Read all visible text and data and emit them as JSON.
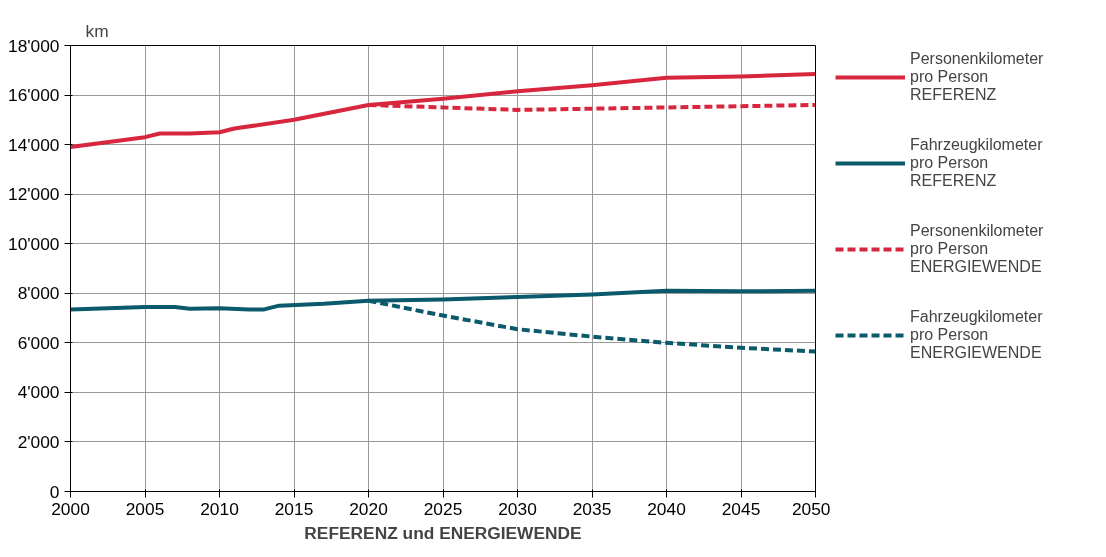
{
  "chart_data": {
    "type": "line",
    "xlabel": "REFERENZ und ENERGIEWENDE",
    "ylabel": "km",
    "xlim": [
      2000,
      2050
    ],
    "xticks": [
      2000,
      2005,
      2010,
      2015,
      2020,
      2025,
      2030,
      2035,
      2040,
      2045,
      2050
    ],
    "ylim": [
      0,
      18000
    ],
    "yticks": [
      0,
      {
        "value": 2000,
        "label": "2'000"
      },
      {
        "value": 4000,
        "label": "4'000"
      },
      {
        "value": 6000,
        "label": "6'000"
      },
      {
        "value": 8000,
        "label": "8'000"
      },
      {
        "value": 10000,
        "label": "10'000"
      },
      {
        "value": 12000,
        "label": "12'000"
      },
      {
        "value": 14000,
        "label": "14'000"
      },
      {
        "value": 16000,
        "label": "16'000"
      },
      {
        "value": 18000,
        "label": "18'000"
      }
    ],
    "grid": true,
    "legend": "right",
    "marker": "none",
    "series": [
      {
        "name": "Personenkilometer\npro Person\nREFERENZ",
        "color": "#d7263d",
        "line_style": "solid",
        "x": [
          2000,
          2005,
          2006,
          2008,
          2010,
          2011,
          2015,
          2020,
          2025,
          2030,
          2035,
          2040,
          2045,
          2050
        ],
        "values": [
          13900,
          14300,
          14450,
          14450,
          14500,
          14650,
          15000,
          15600,
          15850,
          16150,
          16400,
          16700,
          16750,
          16850
        ]
      },
      {
        "name": "Fahrzeugkilometer\npro Person\nREFERENZ",
        "color": "#0b5a6b",
        "line_style": "solid",
        "x": [
          2000,
          2005,
          2007,
          2008,
          2010,
          2012,
          2013,
          2014,
          2017,
          2020,
          2025,
          2030,
          2035,
          2040,
          2045,
          2050
        ],
        "values": [
          7350,
          7450,
          7450,
          7380,
          7400,
          7350,
          7350,
          7500,
          7580,
          7700,
          7750,
          7850,
          7950,
          8100,
          8080,
          8100
        ]
      },
      {
        "name": "Personenkilometer\npro Person\nENERGIEWENDE",
        "color": "#d7263d",
        "line_style": "dashed",
        "x": [
          2020,
          2025,
          2030,
          2035,
          2040,
          2045,
          2050
        ],
        "values": [
          15600,
          15500,
          15400,
          15450,
          15500,
          15550,
          15600
        ]
      },
      {
        "name": "Fahrzeugkilometer\npro Person\nENERGIEWENDE",
        "color": "#0b5a6b",
        "line_style": "dashed",
        "x": [
          2020,
          2025,
          2030,
          2035,
          2040,
          2045,
          2050
        ],
        "values": [
          7700,
          7100,
          6550,
          6250,
          6000,
          5800,
          5650
        ]
      }
    ]
  }
}
